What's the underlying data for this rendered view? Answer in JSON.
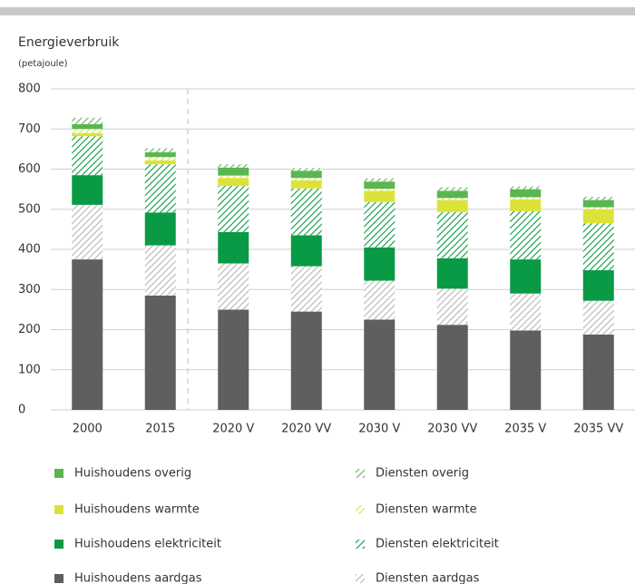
{
  "chart_data": {
    "type": "stacked_bar",
    "title": "Energieverbruik",
    "subtitle": "(petajoule)",
    "categories": [
      "2000",
      "2015",
      "2020 V",
      "2020 VV",
      "2030 V",
      "2030 VV",
      "2035 V",
      "2035 VV"
    ],
    "series": [
      {
        "name": "Huishoudens aardgas",
        "color": "#5f5f5f",
        "pattern": "solid",
        "values": [
          375,
          285,
          250,
          245,
          225,
          212,
          198,
          188
        ]
      },
      {
        "name": "Diensten aardgas",
        "color": "#b5b5b5",
        "pattern": "hatch",
        "values": [
          136,
          125,
          115,
          113,
          97,
          90,
          92,
          84
        ]
      },
      {
        "name": "Huishoudens elektriciteit",
        "color": "#0a9a45",
        "pattern": "solid",
        "values": [
          74,
          82,
          78,
          77,
          83,
          76,
          85,
          76
        ]
      },
      {
        "name": "Diensten elektriciteit",
        "color": "#0a9a45",
        "pattern": "hatch",
        "values": [
          97,
          120,
          115,
          117,
          113,
          115,
          120,
          117
        ]
      },
      {
        "name": "Huishoudens warmte",
        "color": "#dde23a",
        "pattern": "solid",
        "values": [
          8,
          10,
          20,
          20,
          28,
          30,
          30,
          35
        ]
      },
      {
        "name": "Diensten warmte",
        "color": "#dde23a",
        "pattern": "hatch",
        "values": [
          10,
          8,
          6,
          6,
          5,
          5,
          5,
          5
        ]
      },
      {
        "name": "Huishoudens overig",
        "color": "#5ab651",
        "pattern": "solid",
        "values": [
          12,
          12,
          20,
          18,
          18,
          18,
          20,
          18
        ]
      },
      {
        "name": "Diensten overig",
        "color": "#5ab651",
        "pattern": "hatch",
        "values": [
          16,
          10,
          8,
          7,
          8,
          9,
          7,
          8
        ]
      }
    ],
    "ylim": [
      0,
      800
    ],
    "yticks": [
      0,
      100,
      200,
      300,
      400,
      500,
      600,
      700,
      800
    ],
    "grid": true
  }
}
